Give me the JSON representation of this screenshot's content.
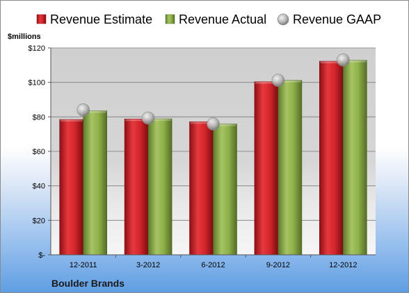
{
  "chart_data": {
    "type": "bar",
    "company": "Boulder Brands",
    "unit_label": "$millions",
    "categories": [
      "12-2011",
      "3-2012",
      "6-2012",
      "9-2012",
      "12-2012"
    ],
    "series": [
      {
        "name": "Revenue Estimate",
        "type": "bar",
        "color": "#d9262c",
        "values": [
          78.5,
          78.8,
          77.2,
          100.4,
          112.3
        ]
      },
      {
        "name": "Revenue Actual",
        "type": "bar",
        "color": "#8fb04a",
        "values": [
          83.5,
          78.9,
          75.9,
          101.2,
          112.8
        ]
      },
      {
        "name": "Revenue GAAP",
        "type": "scatter",
        "color": "#b5b5b5",
        "values": [
          84.0,
          79.3,
          75.9,
          101.2,
          113.0
        ]
      }
    ],
    "y_ticks": [
      "$-",
      "$20",
      "$40",
      "$60",
      "$80",
      "$100",
      "$120"
    ],
    "y_tick_values": [
      0,
      20,
      40,
      60,
      80,
      100,
      120
    ],
    "ylim": [
      0,
      120
    ],
    "grid": true,
    "legend_position": "top"
  }
}
